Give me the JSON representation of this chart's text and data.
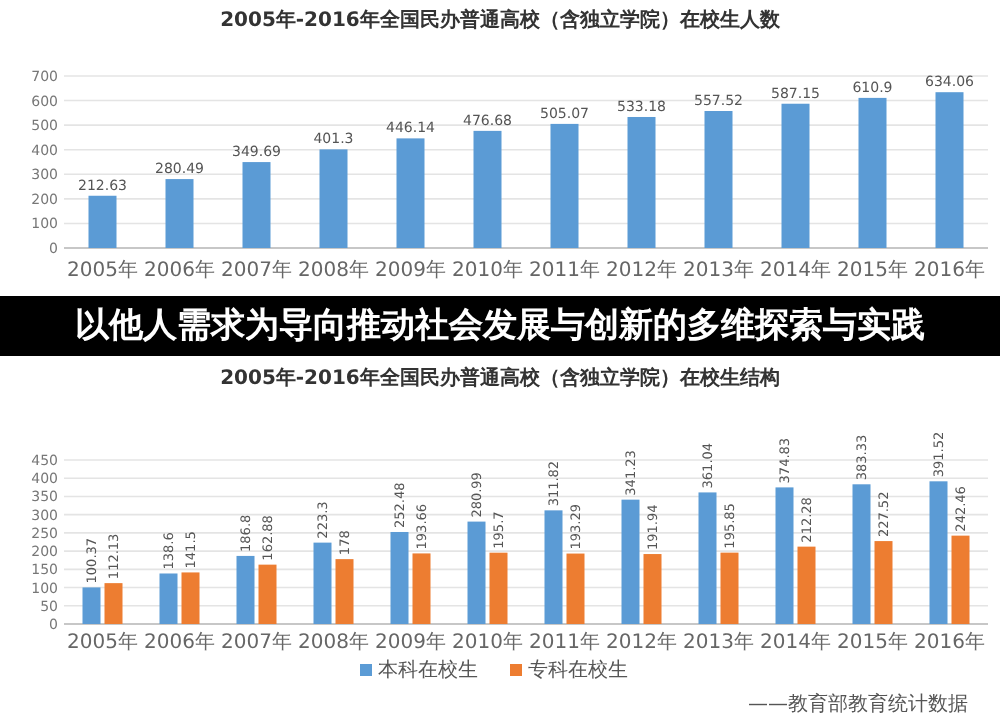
{
  "chart_data": [
    {
      "type": "bar",
      "title": "2005年-2016年全国民办普通高校（含独立学院）在校生人数",
      "categories": [
        "2005年",
        "2006年",
        "2007年",
        "2008年",
        "2009年",
        "2010年",
        "2011年",
        "2012年",
        "2013年",
        "2014年",
        "2015年",
        "2016年"
      ],
      "series": [
        {
          "color": "#5b9bd5",
          "values": [
            212.63,
            280.49,
            349.69,
            401.3,
            446.14,
            476.68,
            505.07,
            533.18,
            557.52,
            587.15,
            610.9,
            634.06
          ]
        }
      ],
      "ylim": [
        0,
        700
      ],
      "yticks": [
        0,
        100,
        200,
        300,
        400,
        500,
        600,
        700
      ],
      "grid": "y",
      "data_labels": true
    },
    {
      "type": "bar",
      "title": "2005年-2016年全国民办普通高校（含独立学院）在校生结构",
      "annotations": [
        "以他人需求为导向推动社会发展与创新的多维探索与实践",
        "——教育部教育统计数据"
      ],
      "categories": [
        "2005年",
        "2006年",
        "2007年",
        "2008年",
        "2009年",
        "2010年",
        "2011年",
        "2012年",
        "2013年",
        "2014年",
        "2015年",
        "2016年"
      ],
      "series": [
        {
          "name": "本科在校生",
          "color": "#5b9bd5",
          "values": [
            100.37,
            138.6,
            186.8,
            223.3,
            252.48,
            280.99,
            311.82,
            341.23,
            361.04,
            374.83,
            383.33,
            391.52
          ]
        },
        {
          "name": "专科在校生",
          "color": "#ed7d31",
          "values": [
            112.13,
            141.5,
            162.88,
            178,
            193.66,
            195.7,
            193.29,
            191.94,
            195.85,
            212.28,
            227.52,
            242.46
          ]
        }
      ],
      "ylim": [
        0,
        450
      ],
      "yticks": [
        0,
        50,
        100,
        150,
        200,
        250,
        300,
        350,
        400,
        450
      ],
      "grid": "y",
      "data_labels": true,
      "legend": "bottom"
    }
  ]
}
